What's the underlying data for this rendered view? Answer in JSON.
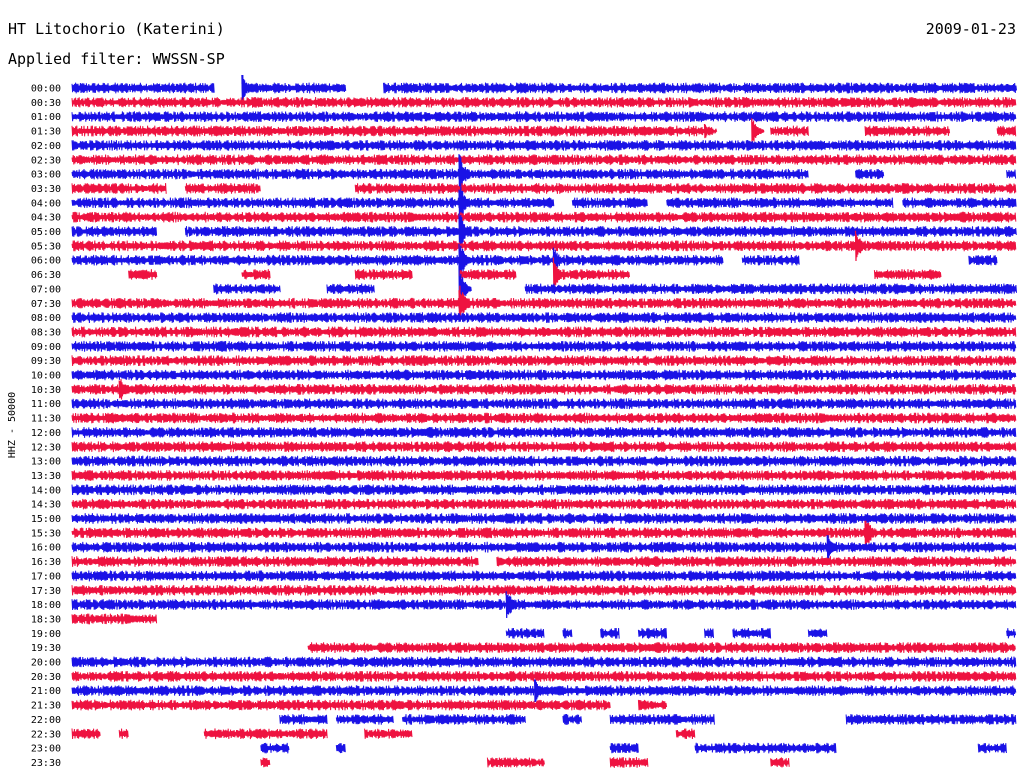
{
  "header": {
    "station": "HT Litochorio (Katerini)",
    "date": "2009-01-23",
    "filter": "Applied filter: WWSSN-SP"
  },
  "colors": {
    "even": "#1a12e6",
    "odd": "#ee1240",
    "bg": "#ffffff"
  },
  "chart_data": {
    "type": "line",
    "title": "HT Litochorio (Katerini)",
    "ylabel": "HHZ - 50000",
    "rows": [
      {
        "label": "00:00",
        "color": "blue",
        "segs": [
          [
            0.0,
            0.15
          ],
          [
            0.18,
            0.29
          ],
          [
            0.33,
            1.0
          ]
        ],
        "events": [
          [
            0.18,
            1.2
          ]
        ]
      },
      {
        "label": "00:30",
        "color": "red",
        "segs": [
          [
            0.0,
            1.0
          ]
        ],
        "events": []
      },
      {
        "label": "01:00",
        "color": "blue",
        "segs": [
          [
            0.0,
            1.0
          ]
        ],
        "events": []
      },
      {
        "label": "01:30",
        "color": "red",
        "segs": [
          [
            0.0,
            0.68
          ],
          [
            0.74,
            0.78
          ],
          [
            0.84,
            0.93
          ],
          [
            0.98,
            1.0
          ]
        ],
        "events": [
          [
            0.72,
            1.1
          ],
          [
            0.67,
            0.6
          ]
        ]
      },
      {
        "label": "02:00",
        "color": "blue",
        "segs": [
          [
            0.0,
            1.0
          ]
        ],
        "events": []
      },
      {
        "label": "02:30",
        "color": "red",
        "segs": [
          [
            0.0,
            1.0
          ]
        ],
        "events": []
      },
      {
        "label": "03:00",
        "color": "blue",
        "segs": [
          [
            0.0,
            0.78
          ],
          [
            0.83,
            0.86
          ],
          [
            0.99,
            1.0
          ]
        ],
        "events": [
          [
            0.41,
            1.8
          ]
        ]
      },
      {
        "label": "03:30",
        "color": "red",
        "segs": [
          [
            0.0,
            0.1
          ],
          [
            0.12,
            0.2
          ],
          [
            0.3,
            1.0
          ]
        ],
        "events": []
      },
      {
        "label": "04:00",
        "color": "blue",
        "segs": [
          [
            0.0,
            0.51
          ],
          [
            0.53,
            0.61
          ],
          [
            0.63,
            0.87
          ],
          [
            0.88,
            1.0
          ]
        ],
        "events": [
          [
            0.41,
            1.8
          ]
        ]
      },
      {
        "label": "04:30",
        "color": "red",
        "segs": [
          [
            0.0,
            1.0
          ]
        ],
        "events": []
      },
      {
        "label": "05:00",
        "color": "blue",
        "segs": [
          [
            0.0,
            0.09
          ],
          [
            0.12,
            1.0
          ]
        ],
        "events": [
          [
            0.41,
            1.8
          ]
        ]
      },
      {
        "label": "05:30",
        "color": "red",
        "segs": [
          [
            0.0,
            1.0
          ]
        ],
        "events": [
          [
            0.83,
            1.3
          ]
        ]
      },
      {
        "label": "06:00",
        "color": "blue",
        "segs": [
          [
            0.0,
            0.69
          ],
          [
            0.71,
            0.77
          ],
          [
            0.95,
            0.98
          ]
        ],
        "events": [
          [
            0.41,
            1.8
          ],
          [
            0.51,
            1.2
          ]
        ]
      },
      {
        "label": "06:30",
        "color": "red",
        "segs": [
          [
            0.06,
            0.09
          ],
          [
            0.18,
            0.21
          ],
          [
            0.3,
            0.36
          ],
          [
            0.41,
            0.47
          ],
          [
            0.52,
            0.59
          ],
          [
            0.85,
            0.92
          ]
        ],
        "events": [
          [
            0.51,
            1.6
          ]
        ]
      },
      {
        "label": "07:00",
        "color": "blue",
        "segs": [
          [
            0.15,
            0.22
          ],
          [
            0.27,
            0.32
          ],
          [
            0.48,
            1.0
          ]
        ],
        "events": [
          [
            0.41,
            1.8
          ]
        ]
      },
      {
        "label": "07:30",
        "color": "red",
        "segs": [
          [
            0.0,
            1.0
          ]
        ],
        "events": [
          [
            0.41,
            1.8
          ]
        ]
      },
      {
        "label": "08:00",
        "color": "blue",
        "segs": [
          [
            0.0,
            1.0
          ]
        ],
        "events": []
      },
      {
        "label": "08:30",
        "color": "red",
        "segs": [
          [
            0.0,
            1.0
          ]
        ],
        "events": []
      },
      {
        "label": "09:00",
        "color": "blue",
        "segs": [
          [
            0.0,
            1.0
          ]
        ],
        "events": []
      },
      {
        "label": "09:30",
        "color": "red",
        "segs": [
          [
            0.0,
            1.0
          ]
        ],
        "events": []
      },
      {
        "label": "10:00",
        "color": "blue",
        "segs": [
          [
            0.0,
            1.0
          ]
        ],
        "events": []
      },
      {
        "label": "10:30",
        "color": "red",
        "segs": [
          [
            0.0,
            1.0
          ]
        ],
        "events": [
          [
            0.05,
            1.2
          ]
        ]
      },
      {
        "label": "11:00",
        "color": "blue",
        "segs": [
          [
            0.0,
            1.0
          ]
        ],
        "events": []
      },
      {
        "label": "11:30",
        "color": "red",
        "segs": [
          [
            0.0,
            1.0
          ]
        ],
        "events": []
      },
      {
        "label": "12:00",
        "color": "blue",
        "segs": [
          [
            0.0,
            1.0
          ]
        ],
        "events": []
      },
      {
        "label": "12:30",
        "color": "red",
        "segs": [
          [
            0.0,
            1.0
          ]
        ],
        "events": []
      },
      {
        "label": "13:00",
        "color": "blue",
        "segs": [
          [
            0.0,
            1.0
          ]
        ],
        "events": []
      },
      {
        "label": "13:30",
        "color": "red",
        "segs": [
          [
            0.0,
            1.0
          ]
        ],
        "events": []
      },
      {
        "label": "14:00",
        "color": "blue",
        "segs": [
          [
            0.0,
            1.0
          ]
        ],
        "events": []
      },
      {
        "label": "14:30",
        "color": "red",
        "segs": [
          [
            0.0,
            1.0
          ]
        ],
        "events": []
      },
      {
        "label": "15:00",
        "color": "blue",
        "segs": [
          [
            0.0,
            1.0
          ]
        ],
        "events": []
      },
      {
        "label": "15:30",
        "color": "red",
        "segs": [
          [
            0.0,
            1.0
          ]
        ],
        "events": [
          [
            0.84,
            1.6
          ]
        ]
      },
      {
        "label": "16:00",
        "color": "blue",
        "segs": [
          [
            0.0,
            1.0
          ]
        ],
        "events": [
          [
            0.8,
            1.1
          ]
        ]
      },
      {
        "label": "16:30",
        "color": "red",
        "segs": [
          [
            0.0,
            0.43
          ],
          [
            0.45,
            1.0
          ]
        ],
        "events": []
      },
      {
        "label": "17:00",
        "color": "blue",
        "segs": [
          [
            0.0,
            1.0
          ]
        ],
        "events": []
      },
      {
        "label": "17:30",
        "color": "red",
        "segs": [
          [
            0.0,
            1.0
          ]
        ],
        "events": []
      },
      {
        "label": "18:00",
        "color": "blue",
        "segs": [
          [
            0.0,
            1.0
          ]
        ],
        "events": [
          [
            0.46,
            1.4
          ]
        ]
      },
      {
        "label": "18:30",
        "color": "red",
        "segs": [
          [
            0.0,
            0.09
          ]
        ],
        "events": []
      },
      {
        "label": "19:00",
        "color": "blue",
        "segs": [
          [
            0.46,
            0.5
          ],
          [
            0.52,
            0.53
          ],
          [
            0.56,
            0.58
          ],
          [
            0.6,
            0.63
          ],
          [
            0.67,
            0.68
          ],
          [
            0.7,
            0.74
          ],
          [
            0.78,
            0.8
          ],
          [
            0.99,
            1.0
          ]
        ],
        "events": []
      },
      {
        "label": "19:30",
        "color": "red",
        "segs": [
          [
            0.25,
            1.0
          ]
        ],
        "events": []
      },
      {
        "label": "20:00",
        "color": "blue",
        "segs": [
          [
            0.0,
            1.0
          ]
        ],
        "events": []
      },
      {
        "label": "20:30",
        "color": "red",
        "segs": [
          [
            0.0,
            1.0
          ]
        ],
        "events": []
      },
      {
        "label": "21:00",
        "color": "blue",
        "segs": [
          [
            0.0,
            1.0
          ]
        ],
        "events": [
          [
            0.49,
            1.2
          ]
        ]
      },
      {
        "label": "21:30",
        "color": "red",
        "segs": [
          [
            0.0,
            0.57
          ],
          [
            0.6,
            0.63
          ]
        ],
        "events": []
      },
      {
        "label": "22:00",
        "color": "blue",
        "segs": [
          [
            0.22,
            0.27
          ],
          [
            0.28,
            0.34
          ],
          [
            0.35,
            0.48
          ],
          [
            0.52,
            0.54
          ],
          [
            0.57,
            0.61
          ],
          [
            0.61,
            0.68
          ],
          [
            0.82,
            1.0
          ]
        ],
        "events": []
      },
      {
        "label": "22:30",
        "color": "red",
        "segs": [
          [
            0.0,
            0.03
          ],
          [
            0.05,
            0.06
          ],
          [
            0.14,
            0.27
          ],
          [
            0.31,
            0.36
          ],
          [
            0.64,
            0.66
          ]
        ],
        "events": []
      },
      {
        "label": "23:00",
        "color": "blue",
        "segs": [
          [
            0.2,
            0.23
          ],
          [
            0.28,
            0.29
          ],
          [
            0.57,
            0.6
          ],
          [
            0.66,
            0.81
          ],
          [
            0.96,
            0.99
          ]
        ],
        "events": []
      },
      {
        "label": "23:30",
        "color": "red",
        "segs": [
          [
            0.2,
            0.21
          ],
          [
            0.44,
            0.5
          ],
          [
            0.57,
            0.61
          ],
          [
            0.74,
            0.76
          ]
        ],
        "events": []
      }
    ]
  }
}
